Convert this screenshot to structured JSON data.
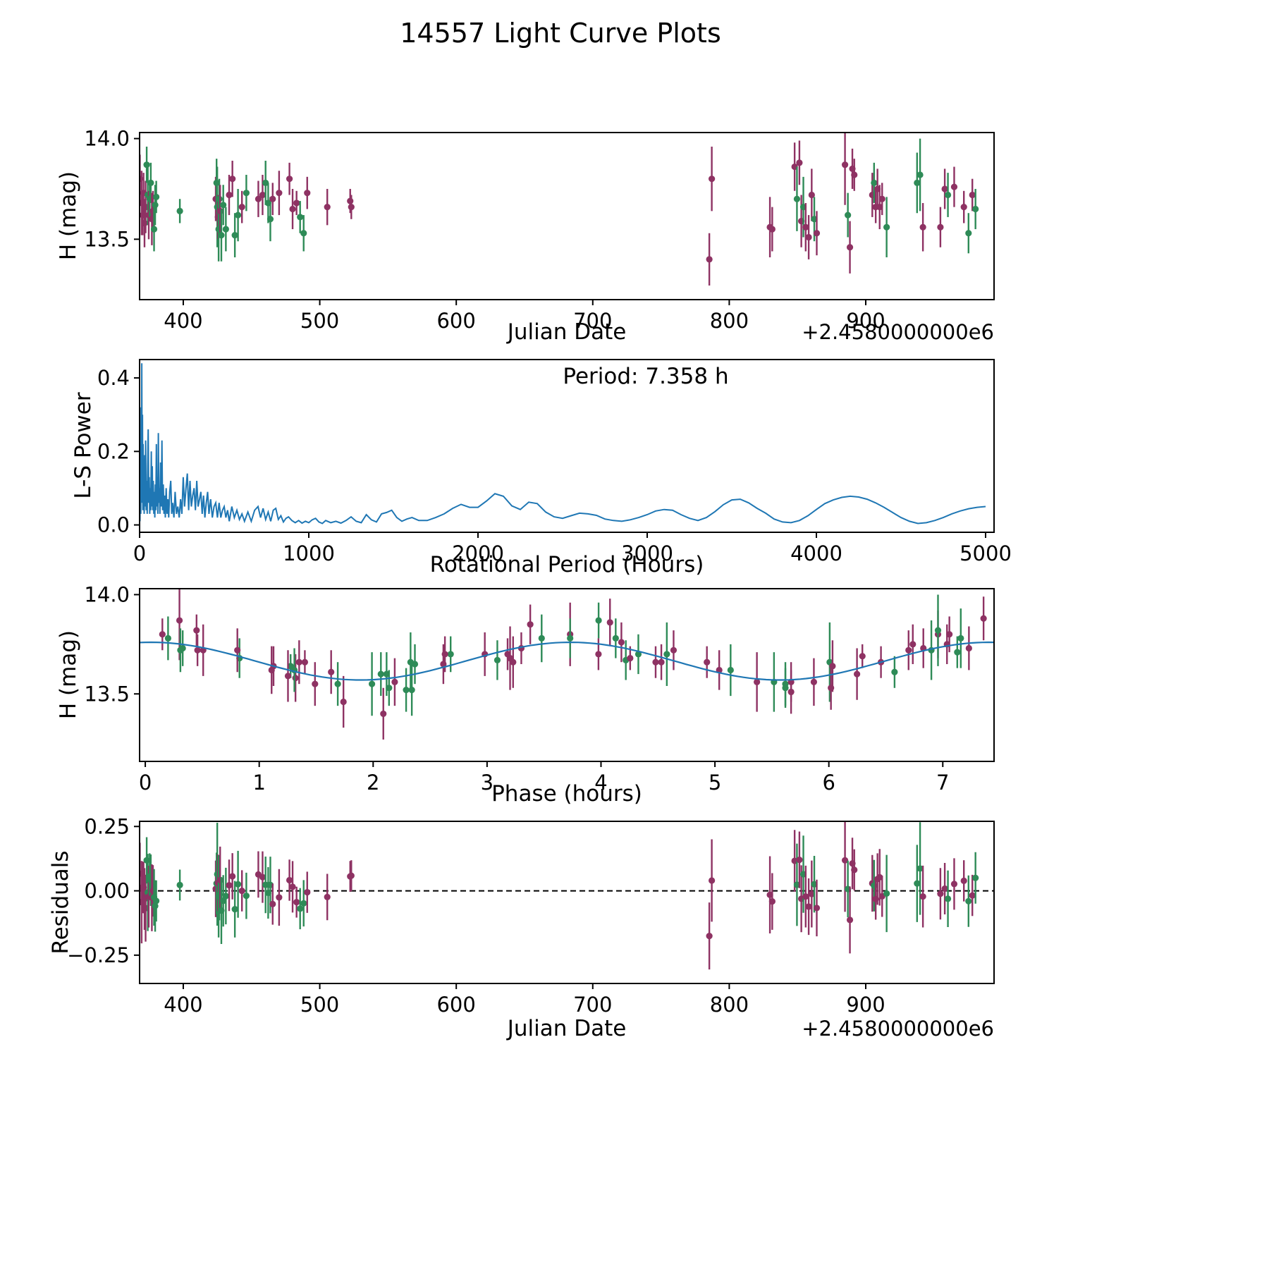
{
  "title": "14557 Light Curve Plots",
  "series_colors": {
    "a": "#8e3263",
    "b": "#2e8b57",
    "line": "#1f77b4"
  },
  "observations": {
    "point_format": [
      "jd_minus_2458000",
      "h_mag",
      "h_err",
      "series"
    ],
    "points": [
      [
        368.2,
        13.8,
        0.12,
        "a"
      ],
      [
        369.5,
        13.68,
        0.16,
        "a"
      ],
      [
        370.3,
        13.62,
        0.1,
        "a"
      ],
      [
        370.9,
        13.73,
        0.1,
        "a"
      ],
      [
        371.6,
        13.58,
        0.12,
        "a"
      ],
      [
        372.4,
        13.66,
        0.13,
        "a"
      ],
      [
        373.2,
        13.87,
        0.09,
        "b"
      ],
      [
        374.0,
        13.72,
        0.15,
        "b"
      ],
      [
        374.7,
        13.62,
        0.12,
        "a"
      ],
      [
        375.4,
        13.7,
        0.09,
        "b"
      ],
      [
        376.2,
        13.78,
        0.1,
        "b"
      ],
      [
        377.0,
        13.6,
        0.13,
        "a"
      ],
      [
        377.8,
        13.64,
        0.1,
        "a"
      ],
      [
        378.6,
        13.55,
        0.11,
        "b"
      ],
      [
        379.4,
        13.67,
        0.1,
        "b"
      ],
      [
        380.2,
        13.71,
        0.08,
        "b"
      ],
      [
        397.5,
        13.64,
        0.06,
        "b"
      ],
      [
        423.8,
        13.7,
        0.11,
        "a"
      ],
      [
        424.4,
        13.78,
        0.12,
        "b"
      ],
      [
        424.9,
        13.66,
        0.2,
        "b"
      ],
      [
        425.4,
        13.61,
        0.11,
        "a"
      ],
      [
        425.9,
        13.55,
        0.16,
        "b"
      ],
      [
        426.4,
        13.7,
        0.1,
        "b"
      ],
      [
        427.0,
        13.64,
        0.13,
        "a"
      ],
      [
        427.9,
        13.52,
        0.13,
        "b"
      ],
      [
        429.3,
        13.67,
        0.1,
        "b"
      ],
      [
        431.2,
        13.55,
        0.11,
        "b"
      ],
      [
        433.6,
        13.72,
        0.1,
        "a"
      ],
      [
        436.0,
        13.8,
        0.09,
        "a"
      ],
      [
        437.8,
        13.52,
        0.11,
        "b"
      ],
      [
        440.1,
        13.62,
        0.13,
        "b"
      ],
      [
        443.0,
        13.66,
        0.08,
        "a"
      ],
      [
        446.2,
        13.73,
        0.09,
        "b"
      ],
      [
        455.0,
        13.7,
        0.09,
        "a"
      ],
      [
        458.1,
        13.72,
        0.1,
        "a"
      ],
      [
        460.3,
        13.78,
        0.11,
        "b"
      ],
      [
        462.2,
        13.68,
        0.1,
        "b"
      ],
      [
        463.8,
        13.6,
        0.11,
        "b"
      ],
      [
        465.5,
        13.7,
        0.08,
        "a"
      ],
      [
        470.2,
        13.73,
        0.11,
        "a"
      ],
      [
        477.8,
        13.8,
        0.08,
        "a"
      ],
      [
        480.1,
        13.65,
        0.1,
        "a"
      ],
      [
        483.0,
        13.68,
        0.06,
        "a"
      ],
      [
        485.6,
        13.61,
        0.08,
        "b"
      ],
      [
        488.2,
        13.53,
        0.09,
        "b"
      ],
      [
        490.8,
        13.73,
        0.08,
        "a"
      ],
      [
        505.5,
        13.66,
        0.09,
        "a"
      ],
      [
        522.3,
        13.69,
        0.06,
        "a"
      ],
      [
        523.1,
        13.66,
        0.06,
        "a"
      ],
      [
        785.4,
        13.4,
        0.13,
        "a"
      ],
      [
        787.2,
        13.8,
        0.16,
        "a"
      ],
      [
        829.8,
        13.56,
        0.15,
        "a"
      ],
      [
        831.5,
        13.55,
        0.11,
        "a"
      ],
      [
        847.9,
        13.86,
        0.12,
        "a"
      ],
      [
        849.6,
        13.7,
        0.16,
        "b"
      ],
      [
        851.4,
        13.88,
        0.11,
        "a"
      ],
      [
        852.8,
        13.59,
        0.13,
        "a"
      ],
      [
        854.3,
        13.66,
        0.15,
        "b"
      ],
      [
        856.0,
        13.56,
        0.12,
        "a"
      ],
      [
        858.2,
        13.51,
        0.11,
        "a"
      ],
      [
        860.4,
        13.72,
        0.13,
        "a"
      ],
      [
        862.3,
        13.6,
        0.11,
        "b"
      ],
      [
        864.1,
        13.53,
        0.11,
        "a"
      ],
      [
        884.8,
        13.87,
        0.2,
        "a"
      ],
      [
        886.9,
        13.62,
        0.11,
        "b"
      ],
      [
        888.4,
        13.46,
        0.13,
        "a"
      ],
      [
        890.2,
        13.85,
        0.1,
        "a"
      ],
      [
        891.6,
        13.82,
        0.08,
        "a"
      ],
      [
        904.8,
        13.72,
        0.11,
        "a"
      ],
      [
        906.1,
        13.78,
        0.1,
        "b"
      ],
      [
        907.3,
        13.66,
        0.08,
        "a"
      ],
      [
        908.6,
        13.75,
        0.1,
        "a"
      ],
      [
        910.2,
        13.66,
        0.11,
        "a"
      ],
      [
        912.0,
        13.7,
        0.08,
        "a"
      ],
      [
        915.3,
        13.56,
        0.15,
        "b"
      ],
      [
        937.6,
        13.78,
        0.15,
        "b"
      ],
      [
        939.8,
        13.82,
        0.18,
        "b"
      ],
      [
        941.9,
        13.56,
        0.12,
        "a"
      ],
      [
        954.7,
        13.56,
        0.1,
        "a"
      ],
      [
        957.9,
        13.75,
        0.1,
        "a"
      ],
      [
        960.2,
        13.72,
        0.11,
        "b"
      ],
      [
        964.8,
        13.76,
        0.1,
        "a"
      ],
      [
        971.9,
        13.66,
        0.08,
        "a"
      ],
      [
        975.3,
        13.53,
        0.1,
        "b"
      ],
      [
        978.1,
        13.72,
        0.08,
        "a"
      ],
      [
        980.4,
        13.65,
        0.1,
        "b"
      ]
    ]
  },
  "chart_data": [
    {
      "type": "scatter",
      "name": "light-curve",
      "xlabel": "Julian Date",
      "x_offset_label": "+2.4580000000e6",
      "ylabel": "H (mag)",
      "xlim": [
        368,
        994
      ],
      "ylim": [
        13.2,
        14.03
      ],
      "xticks": [
        400,
        500,
        600,
        700,
        800,
        900
      ],
      "yticks": [
        14.0,
        13.5
      ],
      "yticklabels": [
        "14.0",
        "13.5"
      ]
    },
    {
      "type": "line",
      "name": "periodogram",
      "xlabel": "Rotational Period (Hours)",
      "ylabel": "L-S Power",
      "annotation": "Period: 7.358 h",
      "xlim": [
        0,
        5050
      ],
      "ylim": [
        -0.02,
        0.45
      ],
      "xticks": [
        0,
        1000,
        2000,
        3000,
        4000,
        5000
      ],
      "yticks": [
        0.0,
        0.2,
        0.4
      ],
      "yticklabels": [
        "0.0",
        "0.2",
        "0.4"
      ],
      "points": [
        [
          2,
          0.01
        ],
        [
          5,
          0.18
        ],
        [
          7,
          0.03
        ],
        [
          9,
          0.32
        ],
        [
          11,
          0.06
        ],
        [
          13,
          0.44
        ],
        [
          15,
          0.1
        ],
        [
          17,
          0.3
        ],
        [
          19,
          0.04
        ],
        [
          21,
          0.22
        ],
        [
          23,
          0.08
        ],
        [
          25,
          0.15
        ],
        [
          27,
          0.03
        ],
        [
          30,
          0.19
        ],
        [
          33,
          0.05
        ],
        [
          36,
          0.23
        ],
        [
          39,
          0.04
        ],
        [
          42,
          0.12
        ],
        [
          45,
          0.03
        ],
        [
          48,
          0.16
        ],
        [
          51,
          0.26
        ],
        [
          54,
          0.06
        ],
        [
          57,
          0.13
        ],
        [
          60,
          0.03
        ],
        [
          63,
          0.1
        ],
        [
          66,
          0.04
        ],
        [
          69,
          0.2
        ],
        [
          72,
          0.05
        ],
        [
          75,
          0.16
        ],
        [
          78,
          0.04
        ],
        [
          81,
          0.12
        ],
        [
          84,
          0.03
        ],
        [
          87,
          0.09
        ],
        [
          90,
          0.02
        ],
        [
          93,
          0.11
        ],
        [
          96,
          0.04
        ],
        [
          99,
          0.22
        ],
        [
          102,
          0.05
        ],
        [
          105,
          0.13
        ],
        [
          108,
          0.03
        ],
        [
          111,
          0.25
        ],
        [
          114,
          0.06
        ],
        [
          117,
          0.1
        ],
        [
          120,
          0.03
        ],
        [
          124,
          0.17
        ],
        [
          128,
          0.05
        ],
        [
          132,
          0.23
        ],
        [
          136,
          0.04
        ],
        [
          140,
          0.11
        ],
        [
          144,
          0.03
        ],
        [
          148,
          0.08
        ],
        [
          152,
          0.02
        ],
        [
          157,
          0.1
        ],
        [
          162,
          0.03
        ],
        [
          167,
          0.07
        ],
        [
          172,
          0.02
        ],
        [
          178,
          0.09
        ],
        [
          184,
          0.12
        ],
        [
          190,
          0.03
        ],
        [
          196,
          0.06
        ],
        [
          203,
          0.02
        ],
        [
          210,
          0.09
        ],
        [
          218,
          0.03
        ],
        [
          226,
          0.05
        ],
        [
          234,
          0.02
        ],
        [
          242,
          0.07
        ],
        [
          250,
          0.03
        ],
        [
          258,
          0.13
        ],
        [
          266,
          0.05
        ],
        [
          274,
          0.1
        ],
        [
          282,
          0.14
        ],
        [
          290,
          0.04
        ],
        [
          298,
          0.12
        ],
        [
          306,
          0.05
        ],
        [
          314,
          0.08
        ],
        [
          322,
          0.1
        ],
        [
          330,
          0.04
        ],
        [
          338,
          0.12
        ],
        [
          346,
          0.05
        ],
        [
          354,
          0.07
        ],
        [
          362,
          0.09
        ],
        [
          370,
          0.03
        ],
        [
          378,
          0.08
        ],
        [
          386,
          0.02
        ],
        [
          394,
          0.06
        ],
        [
          402,
          0.09
        ],
        [
          410,
          0.03
        ],
        [
          420,
          0.07
        ],
        [
          430,
          0.02
        ],
        [
          440,
          0.05
        ],
        [
          450,
          0.06
        ],
        [
          460,
          0.02
        ],
        [
          470,
          0.06
        ],
        [
          480,
          0.02
        ],
        [
          490,
          0.04
        ],
        [
          500,
          0.05
        ],
        [
          510,
          0.02
        ],
        [
          520,
          0.04
        ],
        [
          530,
          0.01
        ],
        [
          545,
          0.05
        ],
        [
          560,
          0.02
        ],
        [
          575,
          0.04
        ],
        [
          590,
          0.015
        ],
        [
          605,
          0.03
        ],
        [
          620,
          0.01
        ],
        [
          640,
          0.035
        ],
        [
          660,
          0.01
        ],
        [
          680,
          0.04
        ],
        [
          700,
          0.05
        ],
        [
          715,
          0.02
        ],
        [
          730,
          0.045
        ],
        [
          745,
          0.015
        ],
        [
          760,
          0.035
        ],
        [
          775,
          0.01
        ],
        [
          790,
          0.04
        ],
        [
          805,
          0.045
        ],
        [
          820,
          0.015
        ],
        [
          835,
          0.025
        ],
        [
          850,
          0.008
        ],
        [
          865,
          0.018
        ],
        [
          880,
          0.022
        ],
        [
          900,
          0.012
        ],
        [
          920,
          0.006
        ],
        [
          940,
          0.012
        ],
        [
          960,
          0.005
        ],
        [
          980,
          0.01
        ],
        [
          1000,
          0.006
        ],
        [
          1020,
          0.014
        ],
        [
          1040,
          0.018
        ],
        [
          1060,
          0.008
        ],
        [
          1080,
          0.004
        ],
        [
          1100,
          0.012
        ],
        [
          1130,
          0.006
        ],
        [
          1160,
          0.01
        ],
        [
          1190,
          0.005
        ],
        [
          1220,
          0.012
        ],
        [
          1250,
          0.022
        ],
        [
          1280,
          0.01
        ],
        [
          1310,
          0.006
        ],
        [
          1340,
          0.028
        ],
        [
          1370,
          0.014
        ],
        [
          1400,
          0.008
        ],
        [
          1430,
          0.03
        ],
        [
          1460,
          0.034
        ],
        [
          1490,
          0.04
        ],
        [
          1520,
          0.02
        ],
        [
          1550,
          0.01
        ],
        [
          1580,
          0.016
        ],
        [
          1610,
          0.02
        ],
        [
          1650,
          0.012
        ],
        [
          1700,
          0.012
        ],
        [
          1750,
          0.02
        ],
        [
          1800,
          0.03
        ],
        [
          1850,
          0.045
        ],
        [
          1900,
          0.056
        ],
        [
          1950,
          0.048
        ],
        [
          2000,
          0.048
        ],
        [
          2050,
          0.065
        ],
        [
          2100,
          0.085
        ],
        [
          2150,
          0.078
        ],
        [
          2200,
          0.052
        ],
        [
          2250,
          0.042
        ],
        [
          2300,
          0.062
        ],
        [
          2350,
          0.058
        ],
        [
          2400,
          0.035
        ],
        [
          2450,
          0.022
        ],
        [
          2500,
          0.018
        ],
        [
          2550,
          0.025
        ],
        [
          2600,
          0.032
        ],
        [
          2650,
          0.03
        ],
        [
          2700,
          0.026
        ],
        [
          2750,
          0.016
        ],
        [
          2800,
          0.012
        ],
        [
          2850,
          0.01
        ],
        [
          2900,
          0.014
        ],
        [
          2950,
          0.02
        ],
        [
          3000,
          0.028
        ],
        [
          3050,
          0.038
        ],
        [
          3100,
          0.042
        ],
        [
          3150,
          0.04
        ],
        [
          3200,
          0.028
        ],
        [
          3250,
          0.018
        ],
        [
          3300,
          0.012
        ],
        [
          3350,
          0.02
        ],
        [
          3400,
          0.036
        ],
        [
          3450,
          0.055
        ],
        [
          3500,
          0.068
        ],
        [
          3550,
          0.07
        ],
        [
          3600,
          0.06
        ],
        [
          3650,
          0.045
        ],
        [
          3700,
          0.032
        ],
        [
          3750,
          0.016
        ],
        [
          3800,
          0.008
        ],
        [
          3850,
          0.006
        ],
        [
          3900,
          0.012
        ],
        [
          3950,
          0.025
        ],
        [
          4000,
          0.042
        ],
        [
          4050,
          0.058
        ],
        [
          4100,
          0.068
        ],
        [
          4150,
          0.075
        ],
        [
          4200,
          0.078
        ],
        [
          4250,
          0.076
        ],
        [
          4300,
          0.07
        ],
        [
          4350,
          0.06
        ],
        [
          4400,
          0.048
        ],
        [
          4450,
          0.034
        ],
        [
          4500,
          0.02
        ],
        [
          4550,
          0.01
        ],
        [
          4600,
          0.004
        ],
        [
          4650,
          0.006
        ],
        [
          4700,
          0.012
        ],
        [
          4750,
          0.02
        ],
        [
          4800,
          0.03
        ],
        [
          4850,
          0.038
        ],
        [
          4900,
          0.044
        ],
        [
          4950,
          0.048
        ],
        [
          5000,
          0.05
        ]
      ]
    },
    {
      "type": "scatter+line",
      "name": "phase-folded",
      "xlabel": "Phase (hours)",
      "ylabel": "H (mag)",
      "xlim": [
        -0.05,
        7.45
      ],
      "ylim": [
        13.16,
        14.03
      ],
      "xticks": [
        0,
        1,
        2,
        3,
        4,
        5,
        6,
        7
      ],
      "yticks": [
        14.0,
        13.5
      ],
      "yticklabels": [
        "14.0",
        "13.5"
      ],
      "fit": {
        "mean": 13.665,
        "amplitude": 0.095,
        "period_hours": 3.679,
        "phase_zero": 0.05,
        "rotation_period_hours": 7.358
      }
    },
    {
      "type": "scatter",
      "name": "residuals",
      "xlabel": "Julian Date",
      "x_offset_label": "+2.4580000000e6",
      "ylabel": "Residuals",
      "xlim": [
        368,
        994
      ],
      "ylim": [
        -0.36,
        0.27
      ],
      "xticks": [
        400,
        500,
        600,
        700,
        800,
        900
      ],
      "yticks": [
        0.25,
        0.0,
        -0.25
      ],
      "yticklabels": [
        "0.25",
        "0.00",
        "−0.25"
      ],
      "zero_line": true
    }
  ]
}
